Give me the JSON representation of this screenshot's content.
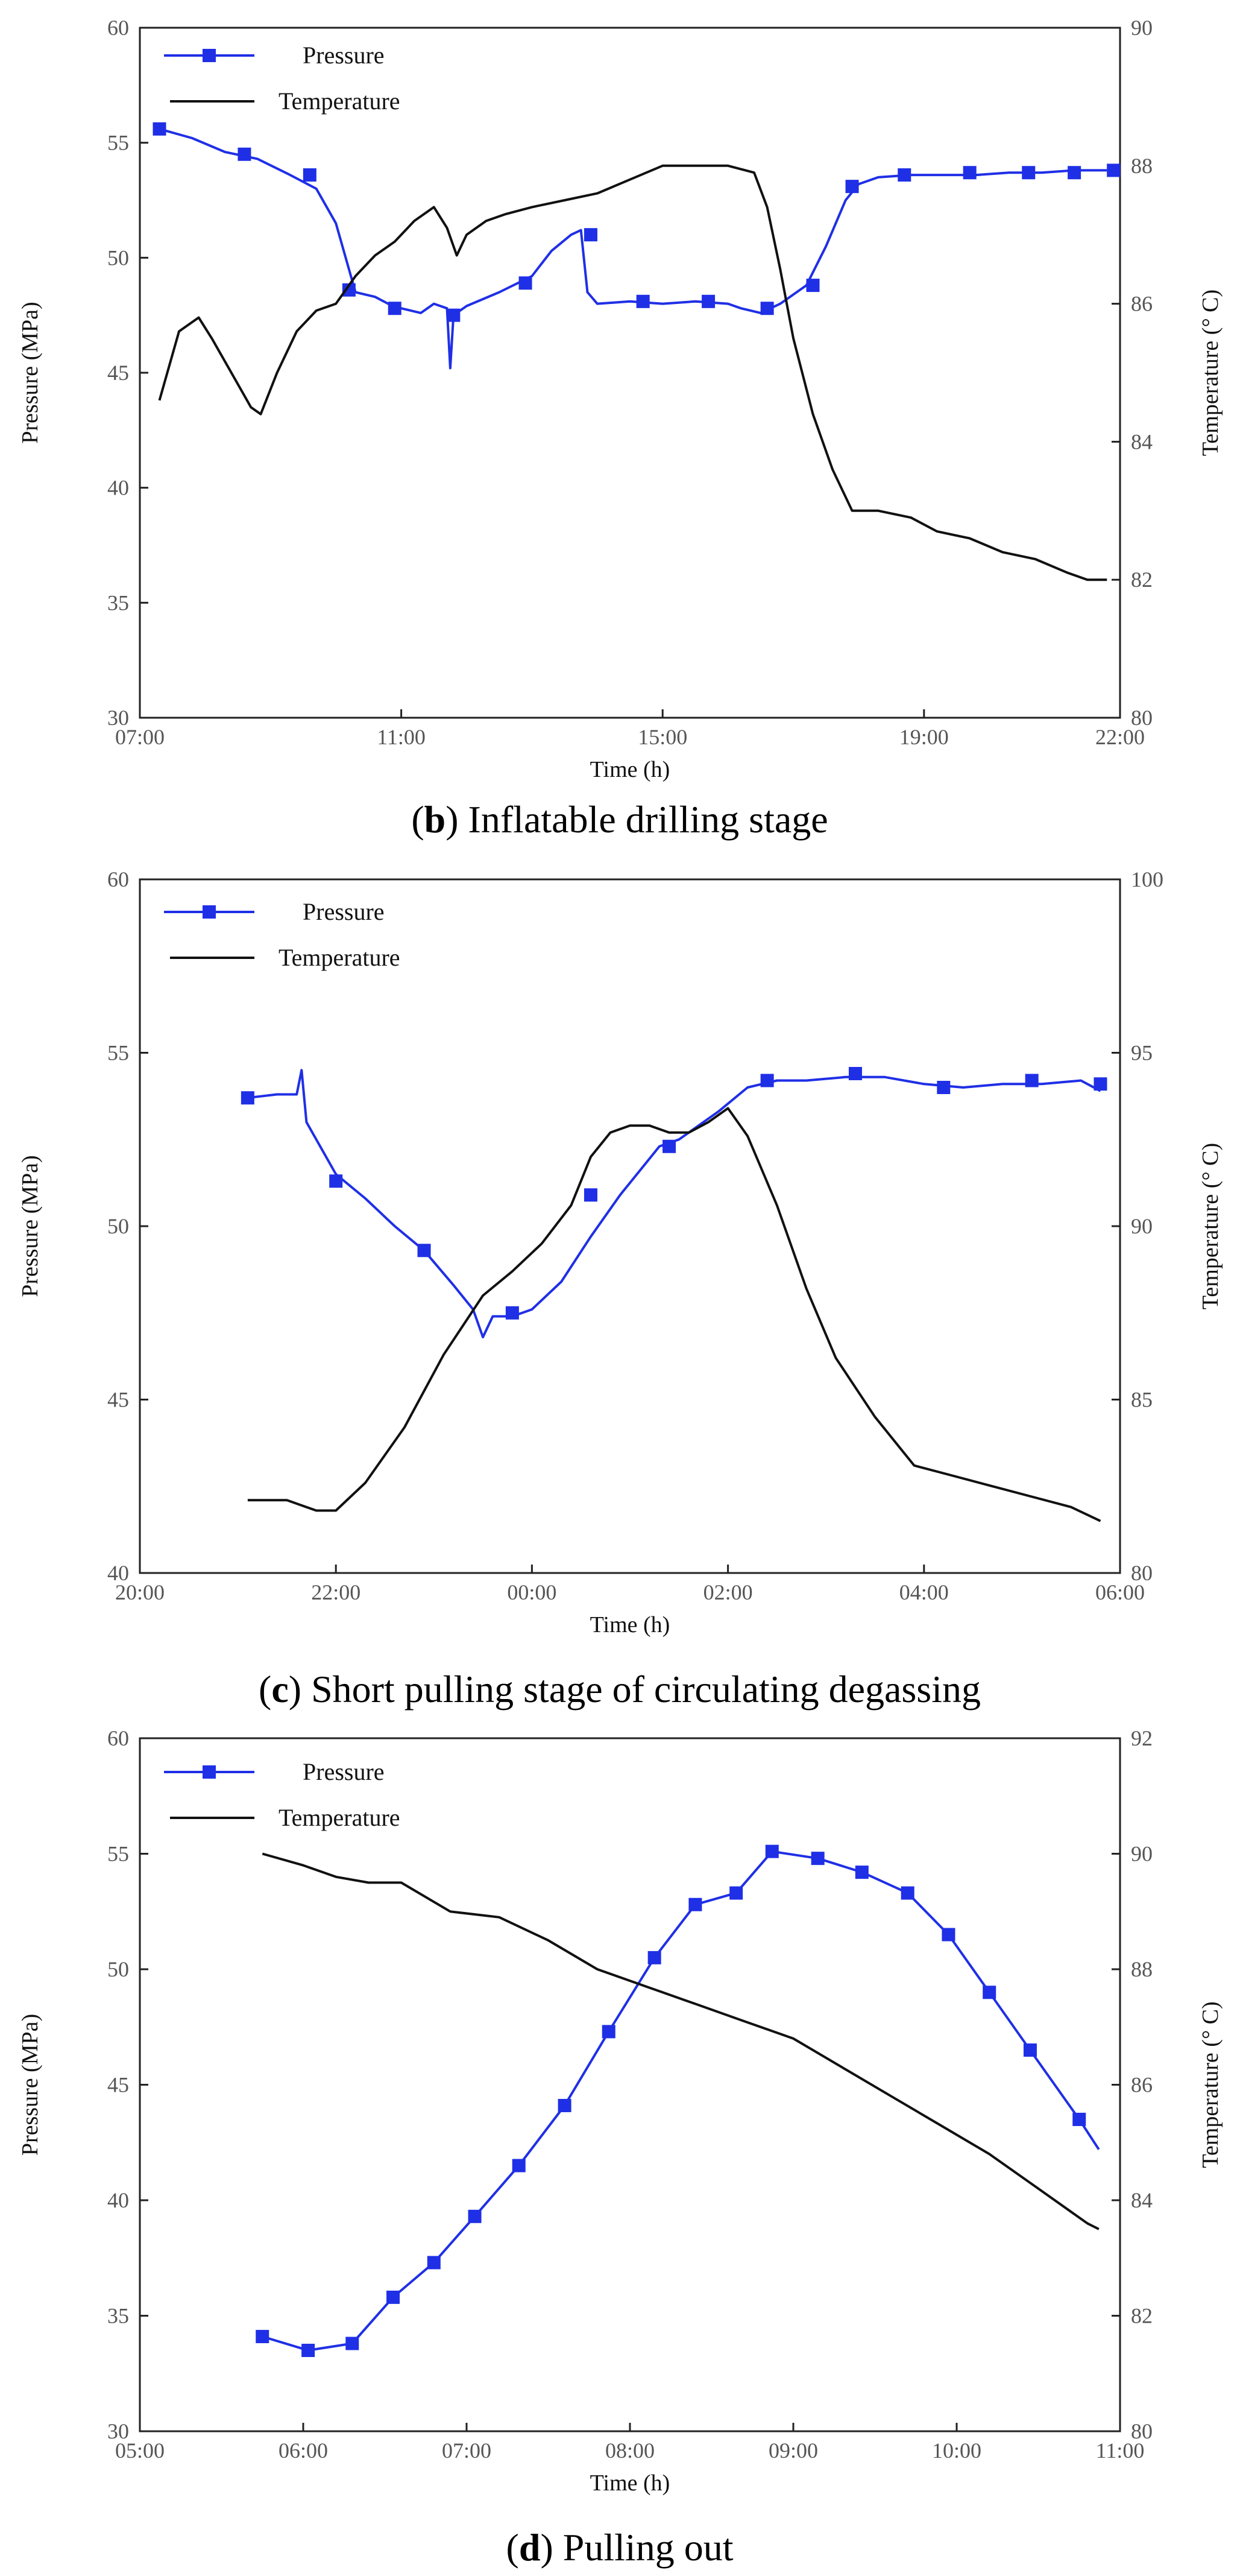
{
  "colors": {
    "pressure": "#1f2fe6",
    "temperature": "#111111"
  },
  "legend": {
    "pressure": "Pressure",
    "temperature": "Temperature"
  },
  "chart_data": [
    {
      "type": "line",
      "caption_letter": "b",
      "caption_text": " Inflatable drilling stage",
      "xlabel": "Time (h)",
      "ylabel": "Pressure (MPa)",
      "y2label": "Temperature (° C)",
      "xlim": [
        7,
        22
      ],
      "xticks": [
        "07:00",
        "11:00",
        "15:00",
        "19:00",
        "22:00"
      ],
      "xtick_values": [
        7,
        11,
        15,
        19,
        22
      ],
      "ylim": [
        30,
        60
      ],
      "yticks": [
        "30",
        "35",
        "40",
        "45",
        "50",
        "55",
        "60"
      ],
      "y2lim": [
        80,
        90
      ],
      "y2ticks": [
        "80",
        "82",
        "84",
        "86",
        "88",
        "90"
      ],
      "series": [
        {
          "name": "Pressure",
          "axis": "left",
          "markers": true,
          "x": [
            7.3,
            7.8,
            8.3,
            8.8,
            9.3,
            9.7,
            10.0,
            10.3,
            10.6,
            10.8,
            11.0,
            11.3,
            11.5,
            11.7,
            11.75,
            11.8,
            12.0,
            12.5,
            13.0,
            13.3,
            13.6,
            13.75,
            13.85,
            14.0,
            14.5,
            15.0,
            15.5,
            16.0,
            16.2,
            16.5,
            16.8,
            17.2,
            17.5,
            17.8,
            18.0,
            18.3,
            18.8,
            19.3,
            19.8,
            20.3,
            20.8,
            21.3,
            21.8
          ],
          "y": [
            55.6,
            55.2,
            54.6,
            54.3,
            53.6,
            53.0,
            51.5,
            48.5,
            48.3,
            48.0,
            47.8,
            47.6,
            48.0,
            47.8,
            45.2,
            47.5,
            47.9,
            48.5,
            49.2,
            50.3,
            51.0,
            51.2,
            48.5,
            48.0,
            48.1,
            48.0,
            48.1,
            48.0,
            47.8,
            47.6,
            48.0,
            48.8,
            50.5,
            52.5,
            53.2,
            53.5,
            53.6,
            53.6,
            53.6,
            53.7,
            53.7,
            53.8,
            53.8
          ],
          "marker_x": [
            7.3,
            8.6,
            9.6,
            10.2,
            10.9,
            11.8,
            12.9,
            13.9,
            14.7,
            15.7,
            16.6,
            17.3,
            17.9,
            18.7,
            19.7,
            20.6,
            21.3,
            21.9
          ],
          "marker_y": [
            55.6,
            54.5,
            53.6,
            48.6,
            47.8,
            47.5,
            48.9,
            51.0,
            48.1,
            48.1,
            47.8,
            48.8,
            53.1,
            53.6,
            53.7,
            53.7,
            53.7,
            53.8
          ]
        },
        {
          "name": "Temperature",
          "axis": "right",
          "markers": false,
          "x": [
            7.3,
            7.6,
            7.9,
            8.1,
            8.4,
            8.7,
            8.85,
            9.1,
            9.4,
            9.7,
            10.0,
            10.3,
            10.6,
            10.9,
            11.2,
            11.5,
            11.7,
            11.85,
            12.0,
            12.3,
            12.6,
            13.0,
            13.5,
            14.0,
            14.5,
            15.0,
            15.5,
            16.0,
            16.4,
            16.6,
            16.8,
            17.0,
            17.3,
            17.6,
            17.9,
            18.3,
            18.8,
            19.2,
            19.7,
            20.2,
            20.7,
            21.2,
            21.5,
            21.8
          ],
          "y": [
            84.6,
            85.6,
            85.8,
            85.5,
            85.0,
            84.5,
            84.4,
            85.0,
            85.6,
            85.9,
            86.0,
            86.4,
            86.7,
            86.9,
            87.2,
            87.4,
            87.1,
            86.7,
            87.0,
            87.2,
            87.3,
            87.4,
            87.5,
            87.6,
            87.8,
            88.0,
            88.0,
            88.0,
            87.9,
            87.4,
            86.5,
            85.5,
            84.4,
            83.6,
            83.0,
            83.0,
            82.9,
            82.7,
            82.6,
            82.4,
            82.3,
            82.1,
            82.0,
            82.0
          ]
        }
      ]
    },
    {
      "type": "line",
      "caption_letter": "c",
      "caption_text": " Short pulling stage of circulating degassing",
      "xlabel": "Time (h)",
      "ylabel": "Pressure (MPa)",
      "y2label": "Temperature (° C)",
      "xlim": [
        20,
        30
      ],
      "xticks": [
        "20:00",
        "22:00",
        "00:00",
        "02:00",
        "04:00",
        "06:00"
      ],
      "xtick_values": [
        20,
        22,
        24,
        26,
        28,
        30
      ],
      "ylim": [
        40,
        60
      ],
      "yticks": [
        "40",
        "45",
        "50",
        "55",
        "60"
      ],
      "y2lim": [
        80,
        100
      ],
      "y2ticks": [
        "80",
        "85",
        "90",
        "95",
        "100"
      ],
      "series": [
        {
          "name": "Pressure",
          "axis": "left",
          "markers": true,
          "x": [
            21.1,
            21.4,
            21.6,
            21.65,
            21.7,
            21.8,
            22.0,
            22.3,
            22.6,
            22.9,
            23.2,
            23.4,
            23.5,
            23.6,
            23.8,
            24.0,
            24.3,
            24.6,
            24.9,
            25.1,
            25.3,
            25.5,
            25.7,
            25.9,
            26.2,
            26.5,
            26.8,
            27.2,
            27.6,
            28.0,
            28.4,
            28.8,
            29.2,
            29.6,
            29.8
          ],
          "y": [
            53.7,
            53.8,
            53.8,
            54.5,
            53.0,
            52.5,
            51.5,
            50.8,
            50.0,
            49.3,
            48.3,
            47.6,
            46.8,
            47.4,
            47.4,
            47.6,
            48.4,
            49.7,
            50.9,
            51.6,
            52.3,
            52.5,
            52.9,
            53.3,
            54.0,
            54.2,
            54.2,
            54.3,
            54.3,
            54.1,
            54.0,
            54.1,
            54.1,
            54.2,
            53.9
          ],
          "marker_x": [
            21.1,
            22.0,
            22.9,
            23.8,
            24.6,
            25.4,
            26.4,
            27.3,
            28.2,
            29.1,
            29.8
          ],
          "marker_y": [
            53.7,
            51.3,
            49.3,
            47.5,
            50.9,
            52.3,
            54.2,
            54.4,
            54.0,
            54.2,
            54.1
          ]
        },
        {
          "name": "Temperature",
          "axis": "right",
          "markers": false,
          "x": [
            21.1,
            21.5,
            21.8,
            22.0,
            22.3,
            22.7,
            23.1,
            23.5,
            23.8,
            24.1,
            24.4,
            24.6,
            24.8,
            25.0,
            25.2,
            25.4,
            25.6,
            25.8,
            26.0,
            26.2,
            26.5,
            26.8,
            27.1,
            27.5,
            27.9,
            28.3,
            28.7,
            29.1,
            29.5,
            29.8
          ],
          "y": [
            82.1,
            82.1,
            81.8,
            81.8,
            82.6,
            84.2,
            86.3,
            88.0,
            88.7,
            89.5,
            90.6,
            92.0,
            92.7,
            92.9,
            92.9,
            92.7,
            92.7,
            93.0,
            93.4,
            92.6,
            90.6,
            88.2,
            86.2,
            84.5,
            83.1,
            82.8,
            82.5,
            82.2,
            81.9,
            81.5
          ]
        }
      ]
    },
    {
      "type": "line",
      "caption_letter": "d",
      "caption_text": " Pulling out",
      "xlabel": "Time (h)",
      "ylabel": "Pressure (MPa)",
      "y2label": "Temperature (° C)",
      "xlim": [
        5,
        11
      ],
      "xticks": [
        "05:00",
        "06:00",
        "07:00",
        "08:00",
        "09:00",
        "10:00",
        "11:00"
      ],
      "xtick_values": [
        5,
        6,
        7,
        8,
        9,
        10,
        11
      ],
      "ylim": [
        30,
        60
      ],
      "yticks": [
        "30",
        "35",
        "40",
        "45",
        "50",
        "55",
        "60"
      ],
      "y2lim": [
        80,
        92
      ],
      "y2ticks": [
        "80",
        "82",
        "84",
        "86",
        "88",
        "90",
        "92"
      ],
      "series": [
        {
          "name": "Pressure",
          "axis": "left",
          "markers": true,
          "x": [
            5.75,
            6.03,
            6.3,
            6.55,
            6.8,
            7.05,
            7.32,
            7.6,
            7.87,
            8.15,
            8.4,
            8.65,
            8.87,
            9.15,
            9.42,
            9.7,
            9.95,
            10.2,
            10.45,
            10.75,
            10.87
          ],
          "y": [
            34.1,
            33.5,
            33.8,
            35.8,
            37.3,
            39.3,
            41.5,
            44.1,
            47.3,
            50.5,
            52.8,
            53.3,
            55.1,
            54.8,
            54.2,
            53.3,
            51.5,
            49.0,
            46.5,
            43.5,
            42.2
          ],
          "marker_x": [
            5.75,
            6.03,
            6.3,
            6.55,
            6.8,
            7.05,
            7.32,
            7.6,
            7.87,
            8.15,
            8.4,
            8.65,
            8.87,
            9.15,
            9.42,
            9.7,
            9.95,
            10.2,
            10.45,
            10.75
          ],
          "marker_y": [
            34.1,
            33.5,
            33.8,
            35.8,
            37.3,
            39.3,
            41.5,
            44.1,
            47.3,
            50.5,
            52.8,
            53.3,
            55.1,
            54.8,
            54.2,
            53.3,
            51.5,
            49.0,
            46.5,
            43.5
          ]
        },
        {
          "name": "Temperature",
          "axis": "right",
          "markers": false,
          "x": [
            5.75,
            6.0,
            6.2,
            6.4,
            6.6,
            6.9,
            7.2,
            7.5,
            7.8,
            8.1,
            8.4,
            8.7,
            9.0,
            9.3,
            9.6,
            9.9,
            10.2,
            10.5,
            10.8,
            10.87
          ],
          "y": [
            90.0,
            89.8,
            89.6,
            89.5,
            89.5,
            89.0,
            88.9,
            88.5,
            88.0,
            87.7,
            87.4,
            87.1,
            86.8,
            86.3,
            85.8,
            85.3,
            84.8,
            84.2,
            83.6,
            83.5
          ]
        }
      ]
    }
  ]
}
